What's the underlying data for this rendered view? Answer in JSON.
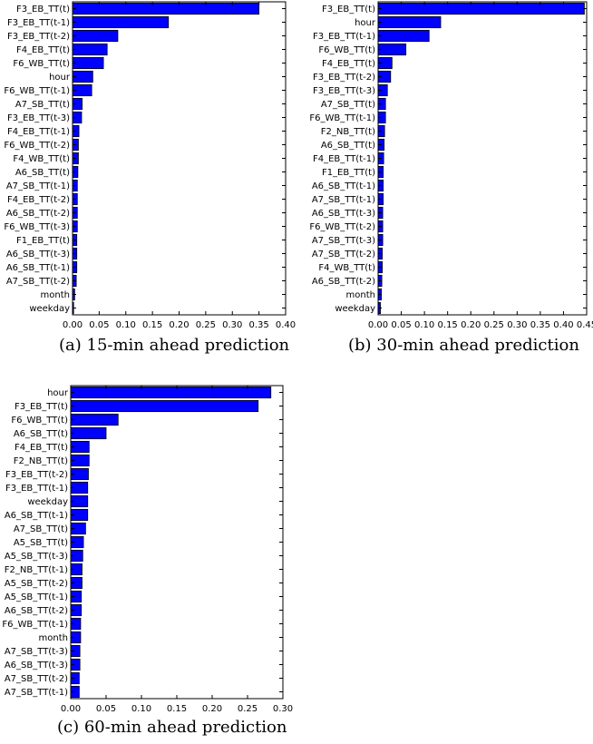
{
  "chart_data": [
    {
      "type": "bar",
      "orientation": "horizontal",
      "caption": "(a) 15-min ahead prediction",
      "categories": [
        "F3_EB_TT(t)",
        "F3_EB_TT(t-1)",
        "F3_EB_TT(t-2)",
        "F4_EB_TT(t)",
        "F6_WB_TT(t)",
        "hour",
        "F6_WB_TT(t-1)",
        "A7_SB_TT(t)",
        "F3_EB_TT(t-3)",
        "F4_EB_TT(t-1)",
        "F6_WB_TT(t-2)",
        "F4_WB_TT(t)",
        "A6_SB_TT(t)",
        "A7_SB_TT(t-1)",
        "F4_EB_TT(t-2)",
        "A6_SB_TT(t-2)",
        "F6_WB_TT(t-3)",
        "F1_EB_TT(t)",
        "A6_SB_TT(t-3)",
        "A6_SB_TT(t-1)",
        "A7_SB_TT(t-2)",
        "month",
        "weekday"
      ],
      "values": [
        0.35,
        0.18,
        0.085,
        0.065,
        0.058,
        0.038,
        0.036,
        0.018,
        0.017,
        0.012,
        0.011,
        0.011,
        0.01,
        0.009,
        0.009,
        0.009,
        0.009,
        0.008,
        0.008,
        0.008,
        0.007,
        0.004,
        0.002
      ],
      "xlim": [
        0,
        0.4
      ],
      "xticks": [
        "0.00",
        "0.05",
        "0.10",
        "0.15",
        "0.20",
        "0.25",
        "0.30",
        "0.35",
        "0.40"
      ],
      "bar_color": "#0000ff"
    },
    {
      "type": "bar",
      "orientation": "horizontal",
      "caption": "(b) 30-min ahead prediction",
      "categories": [
        "F3_EB_TT(t)",
        "hour",
        "F3_EB_TT(t-1)",
        "F6_WB_TT(t)",
        "F4_EB_TT(t)",
        "F3_EB_TT(t-2)",
        "F3_EB_TT(t-3)",
        "A7_SB_TT(t)",
        "F6_WB_TT(t-1)",
        "F2_NB_TT(t)",
        "A6_SB_TT(t)",
        "F4_EB_TT(t-1)",
        "F1_EB_TT(t)",
        "A6_SB_TT(t-1)",
        "A7_SB_TT(t-1)",
        "A6_SB_TT(t-3)",
        "F6_WB_TT(t-2)",
        "A7_SB_TT(t-3)",
        "A7_SB_TT(t-2)",
        "F4_WB_TT(t)",
        "A6_SB_TT(t-2)",
        "month",
        "weekday"
      ],
      "values": [
        0.445,
        0.135,
        0.11,
        0.06,
        0.03,
        0.027,
        0.02,
        0.016,
        0.016,
        0.014,
        0.013,
        0.012,
        0.011,
        0.011,
        0.011,
        0.01,
        0.01,
        0.01,
        0.009,
        0.009,
        0.008,
        0.007,
        0.005
      ],
      "xlim": [
        0,
        0.45
      ],
      "xticks": [
        "0.00",
        "0.05",
        "0.10",
        "0.15",
        "0.20",
        "0.25",
        "0.30",
        "0.35",
        "0.40",
        "0.45"
      ],
      "bar_color": "#0000ff"
    },
    {
      "type": "bar",
      "orientation": "horizontal",
      "caption": "(c) 60-min ahead prediction",
      "categories": [
        "hour",
        "F3_EB_TT(t)",
        "F6_WB_TT(t)",
        "A6_SB_TT(t)",
        "F4_EB_TT(t)",
        "F2_NB_TT(t)",
        "F3_EB_TT(t-2)",
        "F3_EB_TT(t-1)",
        "weekday",
        "A6_SB_TT(t-1)",
        "A7_SB_TT(t)",
        "A5_SB_TT(t)",
        "A5_SB_TT(t-3)",
        "F2_NB_TT(t-1)",
        "A5_SB_TT(t-2)",
        "A5_SB_TT(t-1)",
        "A6_SB_TT(t-2)",
        "F6_WB_TT(t-1)",
        "month",
        "A7_SB_TT(t-3)",
        "A6_SB_TT(t-3)",
        "A7_SB_TT(t-2)",
        "A7_SB_TT(t-1)"
      ],
      "values": [
        0.283,
        0.265,
        0.067,
        0.05,
        0.026,
        0.026,
        0.025,
        0.024,
        0.024,
        0.024,
        0.021,
        0.018,
        0.017,
        0.016,
        0.016,
        0.015,
        0.015,
        0.014,
        0.014,
        0.013,
        0.013,
        0.012,
        0.012
      ],
      "xlim": [
        0,
        0.3
      ],
      "xticks": [
        "0.00",
        "0.05",
        "0.10",
        "0.15",
        "0.20",
        "0.25",
        "0.30"
      ],
      "bar_color": "#0000ff"
    }
  ]
}
